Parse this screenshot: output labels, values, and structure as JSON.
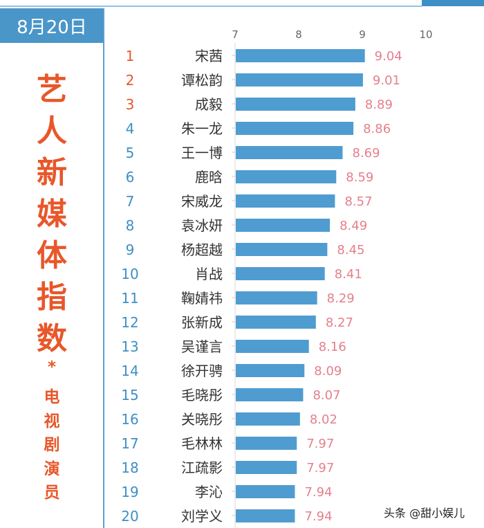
{
  "date": "8月20日",
  "title_chars": [
    "艺",
    "人",
    "新",
    "媒",
    "体",
    "指",
    "数"
  ],
  "separator": "*",
  "subtitle_chars": [
    "电",
    "视",
    "剧",
    "演",
    "员"
  ],
  "watermark": "头条 @甜小娱儿",
  "colors": {
    "bar": "#4f9cd0",
    "value": "#e57f8b",
    "rank_top": "#e8572a",
    "rank": "#3d8fc6"
  },
  "chart_data": {
    "type": "bar",
    "orientation": "horizontal",
    "title": "艺人新媒体指数 电视剧演员",
    "xlim": [
      7,
      10
    ],
    "xticks": [
      7,
      8,
      9,
      10
    ],
    "ranks": [
      1,
      2,
      3,
      4,
      5,
      6,
      7,
      8,
      9,
      10,
      11,
      12,
      13,
      14,
      15,
      16,
      17,
      18,
      19,
      20
    ],
    "categories": [
      "宋茜",
      "谭松韵",
      "成毅",
      "朱一龙",
      "王一博",
      "鹿晗",
      "宋威龙",
      "袁冰妍",
      "杨超越",
      "肖战",
      "鞠婧祎",
      "张新成",
      "吴谨言",
      "徐开骋",
      "毛晓彤",
      "关晓彤",
      "毛林林",
      "江疏影",
      "李沁",
      "刘学义"
    ],
    "values": [
      9.04,
      9.01,
      8.89,
      8.86,
      8.69,
      8.59,
      8.57,
      8.49,
      8.45,
      8.41,
      8.29,
      8.27,
      8.16,
      8.09,
      8.07,
      8.02,
      7.97,
      7.97,
      7.94,
      7.94
    ]
  }
}
